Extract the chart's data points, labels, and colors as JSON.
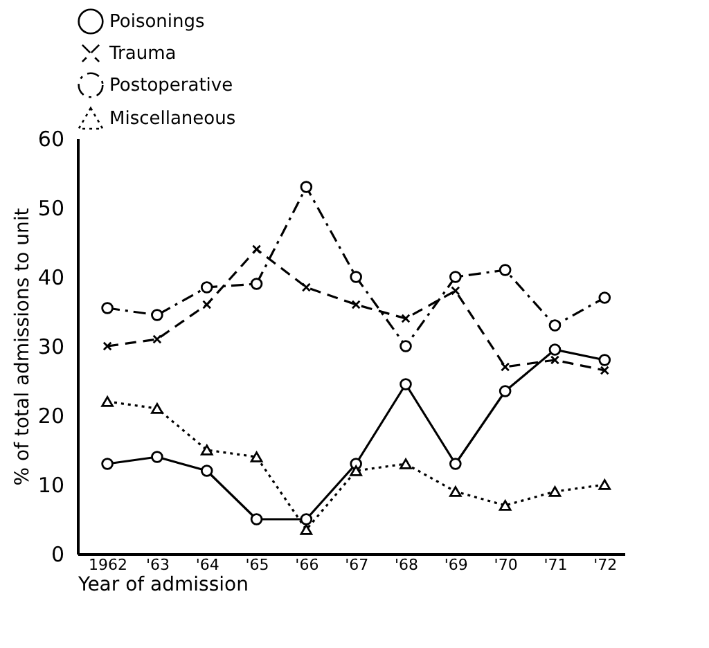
{
  "chart_data": {
    "type": "line",
    "xlabel": "Year of admission",
    "ylabel": "% of total admissions to unit",
    "categories": [
      "1962",
      "'63",
      "'64",
      "'65",
      "'66",
      "'67",
      "'68",
      "'69",
      "'70",
      "'71",
      "'72"
    ],
    "series": [
      {
        "name": "Poisonings",
        "color": "#000000",
        "marker": "circle",
        "line_style": "solid",
        "values": [
          13,
          14,
          12,
          5,
          5,
          13,
          24.5,
          13,
          23.5,
          29.5,
          28
        ]
      },
      {
        "name": "Trauma",
        "color": "#000000",
        "marker": "cross",
        "line_style": "dashed",
        "values": [
          30,
          31,
          36,
          44,
          38.5,
          36,
          34,
          38,
          27,
          28,
          26.5
        ]
      },
      {
        "name": "Postoperative",
        "color": "#000000",
        "marker": "circle",
        "line_style": "dashdot",
        "values": [
          35.5,
          34.5,
          38.5,
          39,
          53,
          40,
          30,
          40,
          41,
          33,
          37
        ]
      },
      {
        "name": "Miscellaneous",
        "color": "#000000",
        "marker": "triangle",
        "line_style": "dotted",
        "values": [
          22,
          21,
          15,
          14,
          3.5,
          12,
          13,
          9,
          7,
          9,
          10
        ]
      }
    ],
    "ylim": [
      0,
      60
    ],
    "yticks": [
      0,
      10,
      20,
      30,
      40,
      50,
      60
    ],
    "grid": false,
    "legend": "top"
  }
}
